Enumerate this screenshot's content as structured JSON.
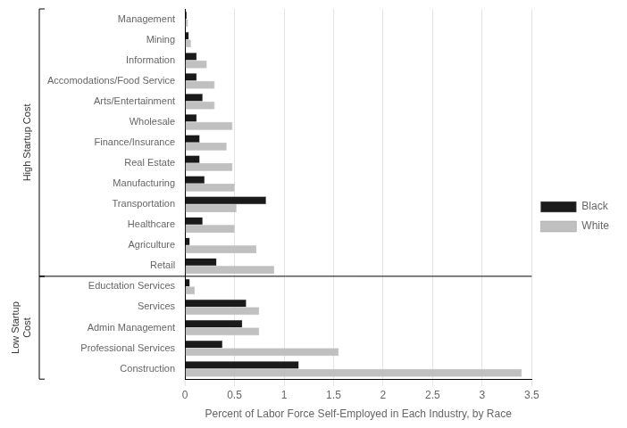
{
  "chart_data": {
    "type": "bar",
    "orientation": "horizontal",
    "categories": [
      "Management",
      "Mining",
      "Information",
      "Accomodations/Food Service",
      "Arts/Entertainment",
      "Wholesale",
      "Finance/Insurance",
      "Real Estate",
      "Manufacturing",
      "Transportation",
      "Healthcare",
      "Agriculture",
      "Retail",
      "Eductation Services",
      "Services",
      "Admin Management",
      "Professional Services",
      "Construction"
    ],
    "series": [
      {
        "name": "Black",
        "color": "#1a1a1a",
        "values": [
          0.02,
          0.04,
          0.12,
          0.12,
          0.18,
          0.12,
          0.15,
          0.15,
          0.2,
          0.82,
          0.18,
          0.05,
          0.32,
          0.05,
          0.62,
          0.58,
          0.38,
          1.15
        ]
      },
      {
        "name": "White",
        "color": "#c0c0c0",
        "values": [
          0.03,
          0.06,
          0.22,
          0.3,
          0.3,
          0.48,
          0.42,
          0.48,
          0.5,
          0.52,
          0.5,
          0.72,
          0.9,
          0.1,
          0.75,
          0.75,
          1.55,
          3.4
        ]
      }
    ],
    "xlabel": "Percent of Labor Force Self-Employed in Each Industry, by Race",
    "xlim": [
      0,
      3.5
    ],
    "xticks": [
      0,
      0.5,
      1,
      1.5,
      2,
      2.5,
      3,
      3.5
    ],
    "grid": true,
    "legend": "right",
    "annotations": [
      {
        "text": "High Startup Cost",
        "from": "Management",
        "to": "Retail"
      },
      {
        "text": "Low Startup\nCost",
        "from": "Eductation Services",
        "to": "Construction"
      }
    ]
  }
}
